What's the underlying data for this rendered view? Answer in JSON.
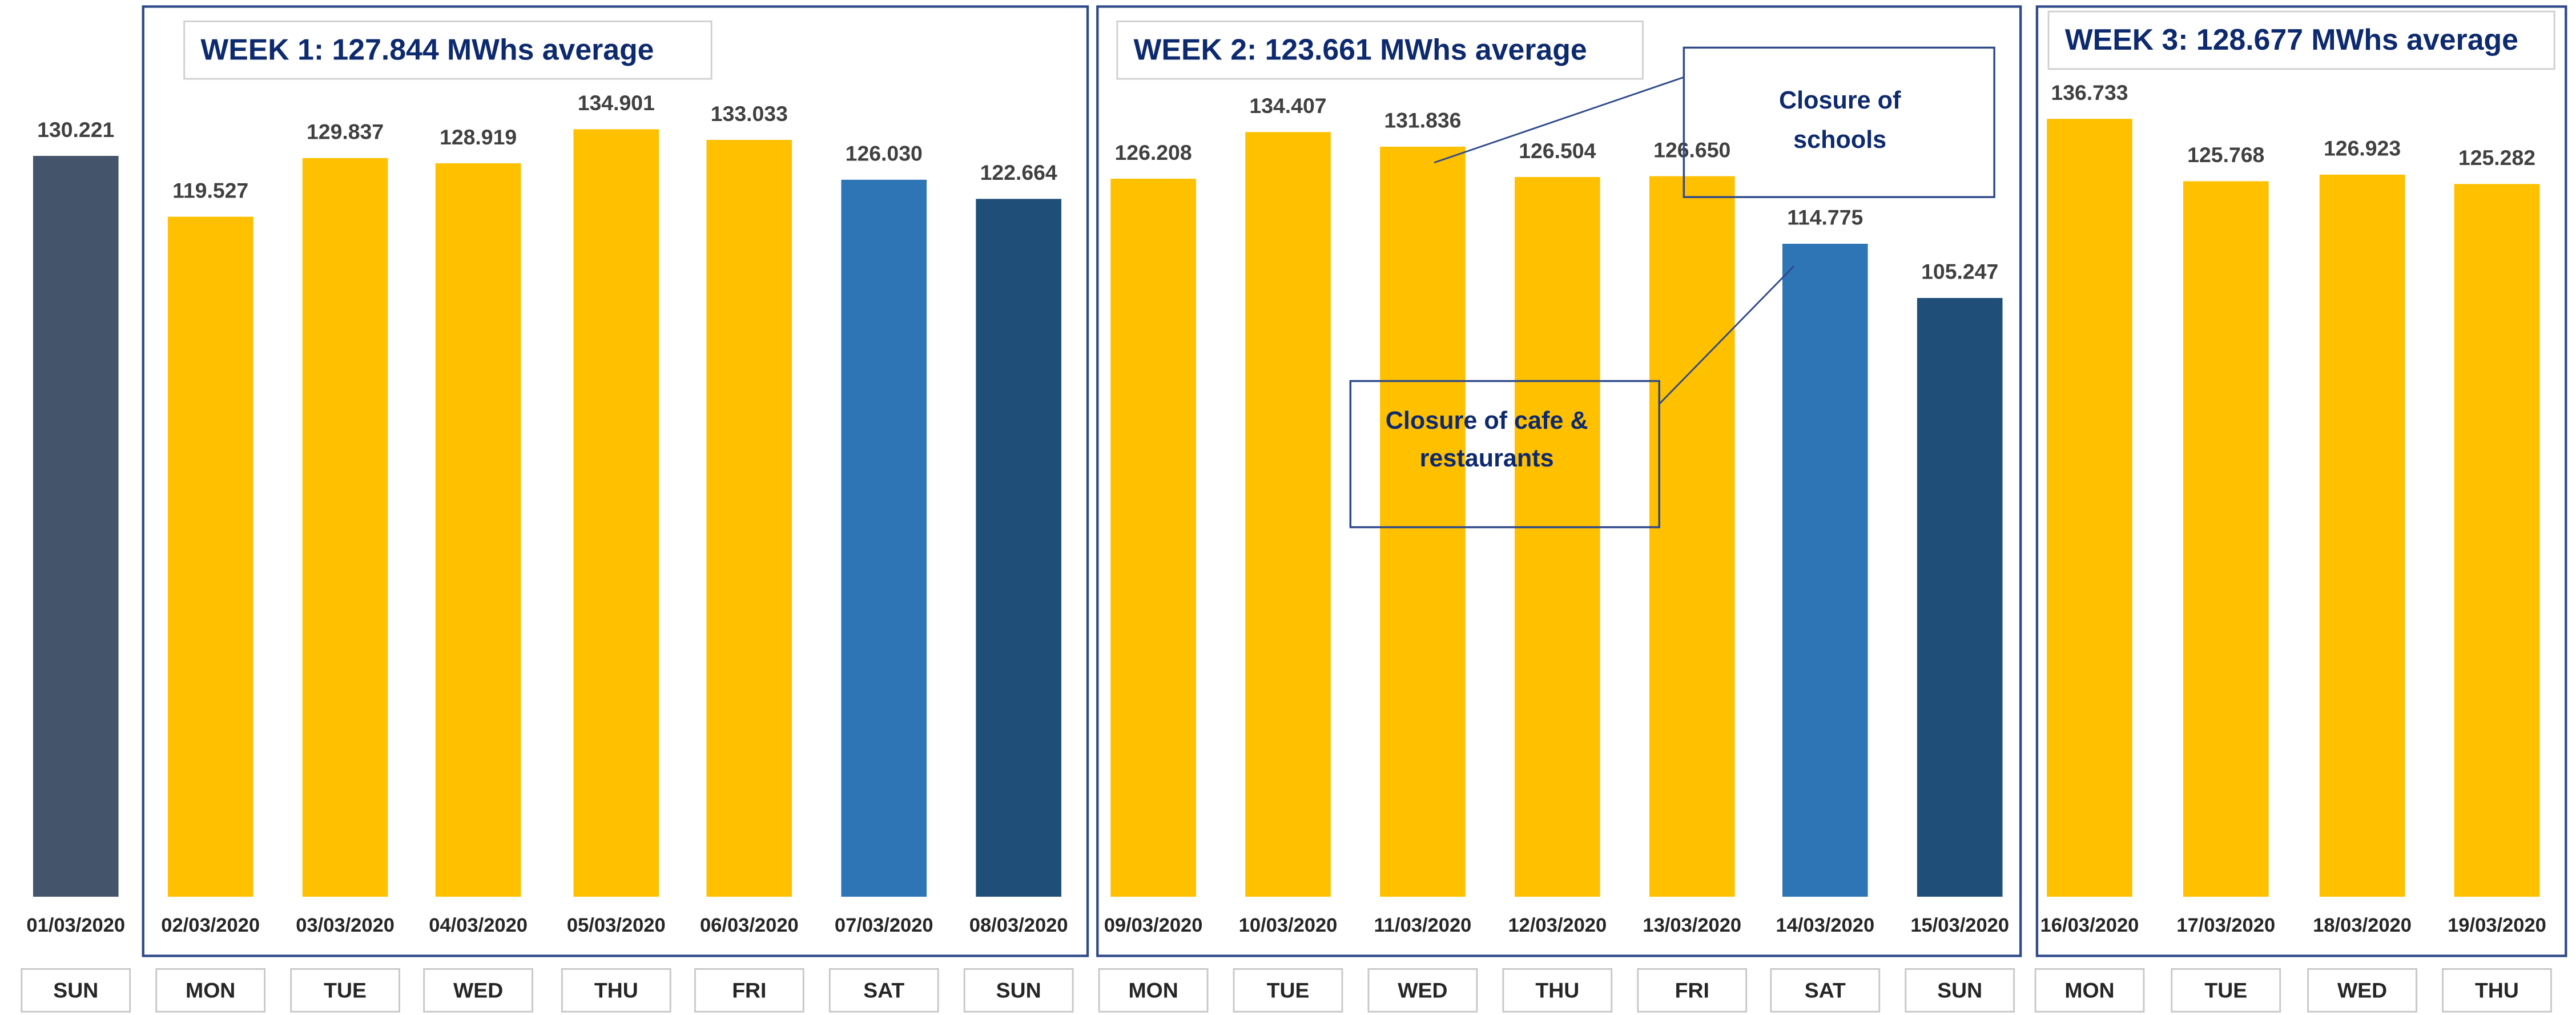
{
  "chart_data": {
    "type": "bar",
    "categories": [
      "01/03/2020",
      "02/03/2020",
      "03/03/2020",
      "04/03/2020",
      "05/03/2020",
      "06/03/2020",
      "07/03/2020",
      "08/03/2020",
      "09/03/2020",
      "10/03/2020",
      "11/03/2020",
      "12/03/2020",
      "13/03/2020",
      "14/03/2020",
      "15/03/2020",
      "16/03/2020",
      "17/03/2020",
      "18/03/2020",
      "19/03/2020"
    ],
    "weekdays": [
      "SUN",
      "MON",
      "TUE",
      "WED",
      "THU",
      "FRI",
      "SAT",
      "SUN",
      "MON",
      "TUE",
      "WED",
      "THU",
      "FRI",
      "SAT",
      "SUN",
      "MON",
      "TUE",
      "WED",
      "THU"
    ],
    "values": [
      130.221,
      119.527,
      129.837,
      128.919,
      134.901,
      133.033,
      126.03,
      122.664,
      126.208,
      134.407,
      131.836,
      126.504,
      126.65,
      114.775,
      105.247,
      136.733,
      125.768,
      126.923,
      125.282
    ],
    "value_labels": [
      "130.221",
      "119.527",
      "129.837",
      "128.919",
      "134.901",
      "133.033",
      "126.030",
      "122.664",
      "126.208",
      "134.407",
      "131.836",
      "126.504",
      "126.650",
      "114.775",
      "105.247",
      "136.733",
      "125.768",
      "126.923",
      "125.282"
    ],
    "colors": [
      "#44546a",
      "#ffc000",
      "#ffc000",
      "#ffc000",
      "#ffc000",
      "#ffc000",
      "#2e75b6",
      "#1f4e79",
      "#ffc000",
      "#ffc000",
      "#ffc000",
      "#ffc000",
      "#ffc000",
      "#2e75b6",
      "#1f4e79",
      "#ffc000",
      "#ffc000",
      "#ffc000",
      "#ffc000"
    ],
    "ylim": [
      0,
      150
    ],
    "weeks": [
      "WEEK 1: 127.844 MWhs average",
      "WEEK 2: 123.661 MWhs average",
      "WEEK 3: 128.677 MWhs average"
    ],
    "annotations": [
      [
        "Closure of",
        "schools"
      ],
      [
        "Closure of cafe &",
        "restaurants"
      ]
    ]
  }
}
